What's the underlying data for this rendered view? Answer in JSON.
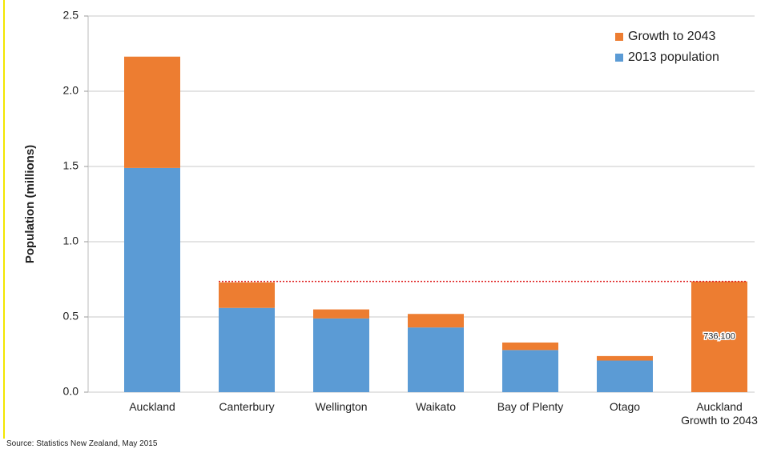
{
  "chart_data": {
    "type": "stacked-bar",
    "y_label": "Population (millions)",
    "source": "Source: Statistics New Zealand, May 2015",
    "categories": [
      "Auckland",
      "Canterbury",
      "Wellington",
      "Waikato",
      "Bay of Plenty",
      "Otago",
      "Auckland Growth to 2043"
    ],
    "series": [
      {
        "name": "2013 population",
        "color": "#5b9bd5",
        "values": [
          1.49,
          0.56,
          0.49,
          0.43,
          0.28,
          0.21,
          null
        ]
      },
      {
        "name": "Growth to 2043",
        "color": "#ed7d31",
        "values": [
          0.74,
          0.17,
          0.06,
          0.09,
          0.05,
          0.03,
          0.7361
        ],
        "value_labels": [
          null,
          null,
          null,
          null,
          null,
          null,
          "736,100"
        ]
      }
    ],
    "ylim": [
      0,
      2.5
    ],
    "yticks": [
      {
        "value": 0,
        "label": "0.0"
      },
      0.5,
      {
        "value": 1,
        "label": "1.0"
      },
      1.5,
      {
        "value": 2,
        "label": "2.0"
      },
      2.5
    ],
    "grid": true,
    "legend": "top-right"
  }
}
